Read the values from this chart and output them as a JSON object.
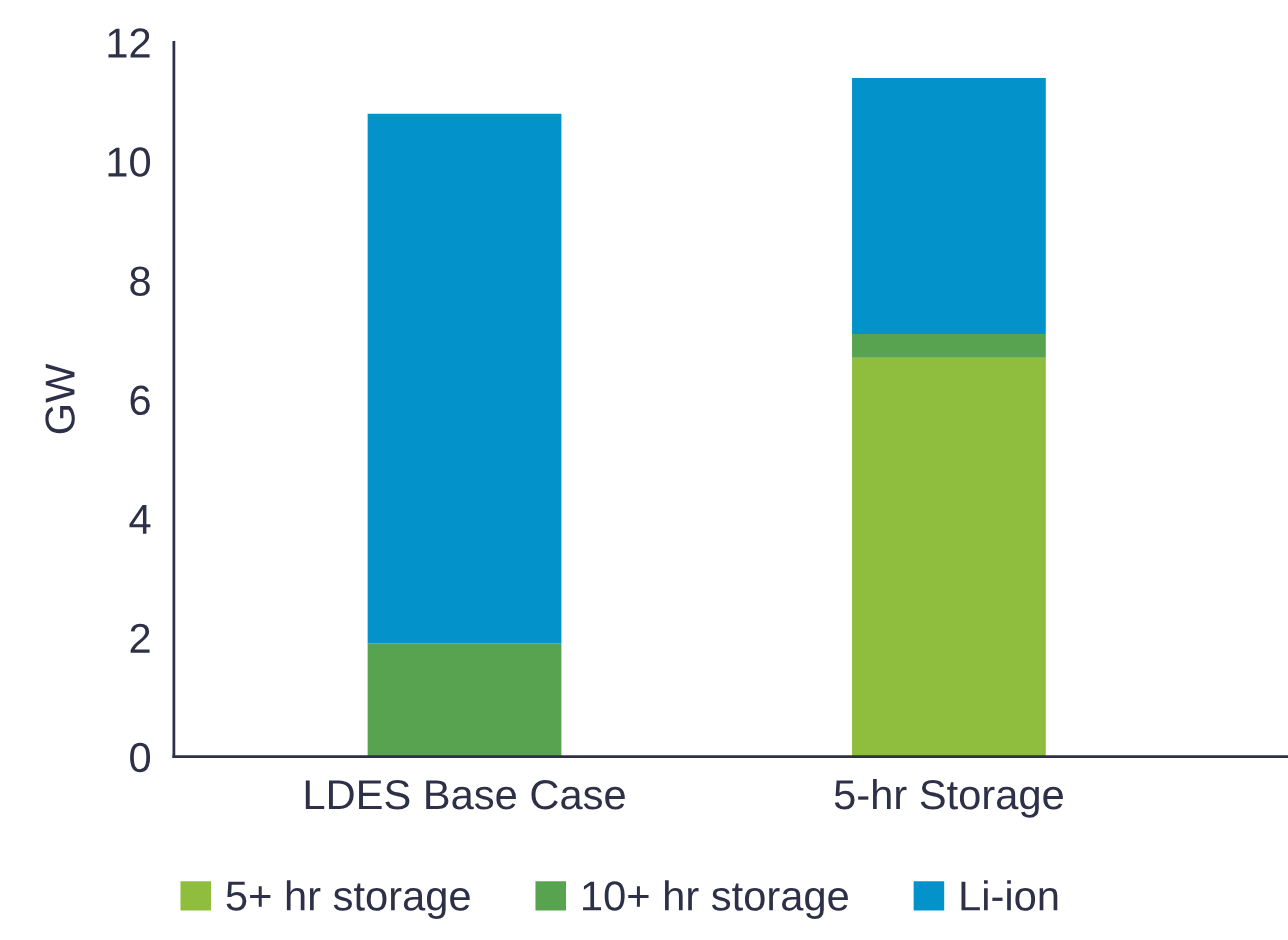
{
  "chart_data": {
    "type": "bar",
    "stacked": true,
    "ylabel": "GW",
    "categories": [
      "LDES Base Case",
      "5-hr Storage"
    ],
    "series": [
      {
        "name": "5+ hr storage",
        "color": "#8fbe3f",
        "values": [
          0,
          6.7
        ]
      },
      {
        "name": "10+ hr storage",
        "color": "#58a34f",
        "values": [
          1.9,
          0.4
        ]
      },
      {
        "name": "Li-ion",
        "color": "#0392ca",
        "values": [
          8.9,
          4.3
        ]
      }
    ],
    "ylim": [
      0,
      12
    ],
    "yticks": [
      0,
      2,
      4,
      6,
      8,
      10,
      12
    ],
    "grid": false,
    "legend": "bottom"
  }
}
